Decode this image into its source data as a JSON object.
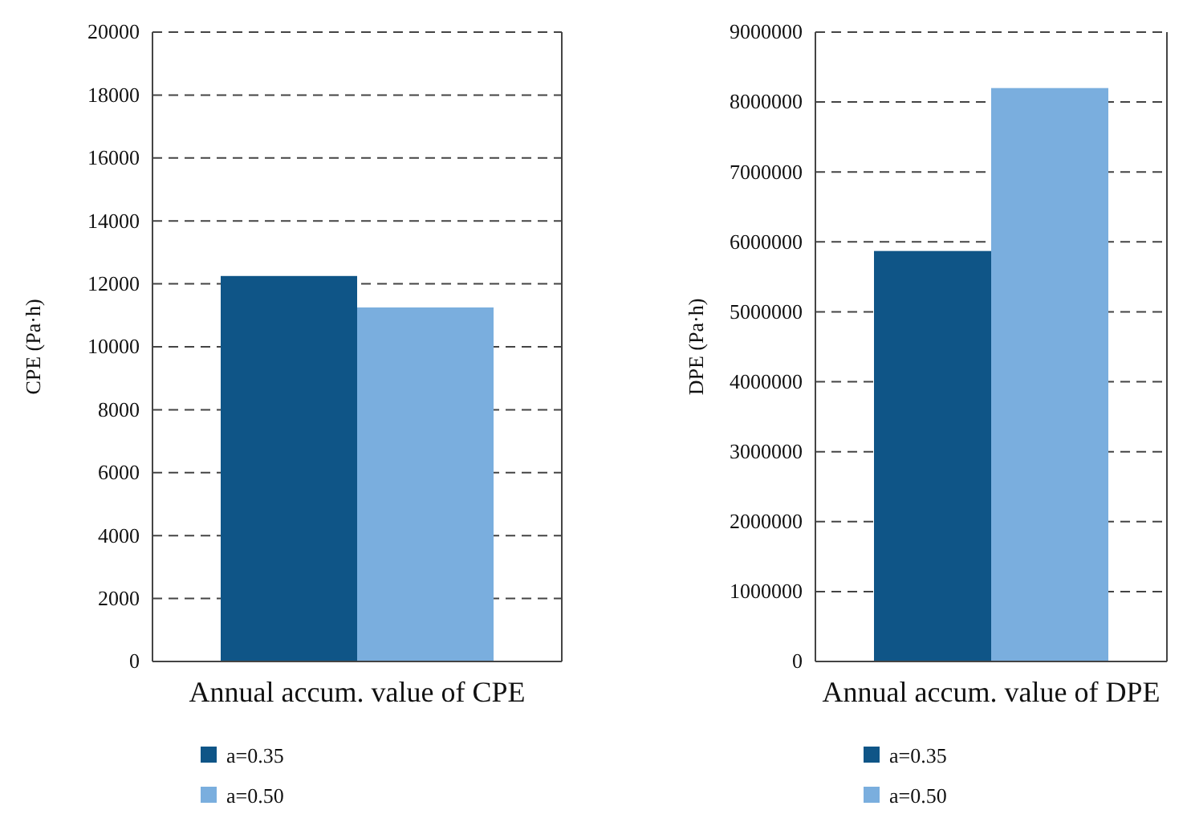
{
  "chart_data": [
    {
      "type": "bar",
      "ylabel": "CPE (Pa·h)",
      "categories": [
        "Annual accum. value of CPE"
      ],
      "series": [
        {
          "name": "a=0.35",
          "color": "#0f5587",
          "values": [
            12250
          ]
        },
        {
          "name": "a=0.50",
          "color": "#7aaede",
          "values": [
            11250
          ]
        }
      ],
      "ylim": [
        0,
        20000
      ],
      "yticks": [
        0,
        2000,
        4000,
        6000,
        8000,
        10000,
        12000,
        14000,
        16000,
        18000,
        20000
      ],
      "grid": "y",
      "legend": "bottom"
    },
    {
      "type": "bar",
      "ylabel": "DPE (Pa·h)",
      "categories": [
        "Annual accum. value of DPE"
      ],
      "series": [
        {
          "name": "a=0.35",
          "color": "#0f5587",
          "values": [
            5870000
          ]
        },
        {
          "name": "a=0.50",
          "color": "#7aaede",
          "values": [
            8200000
          ]
        }
      ],
      "ylim": [
        0,
        9000000
      ],
      "yticks": [
        0,
        1000000,
        2000000,
        3000000,
        4000000,
        5000000,
        6000000,
        7000000,
        8000000,
        9000000
      ],
      "grid": "y",
      "legend": "bottom"
    }
  ]
}
